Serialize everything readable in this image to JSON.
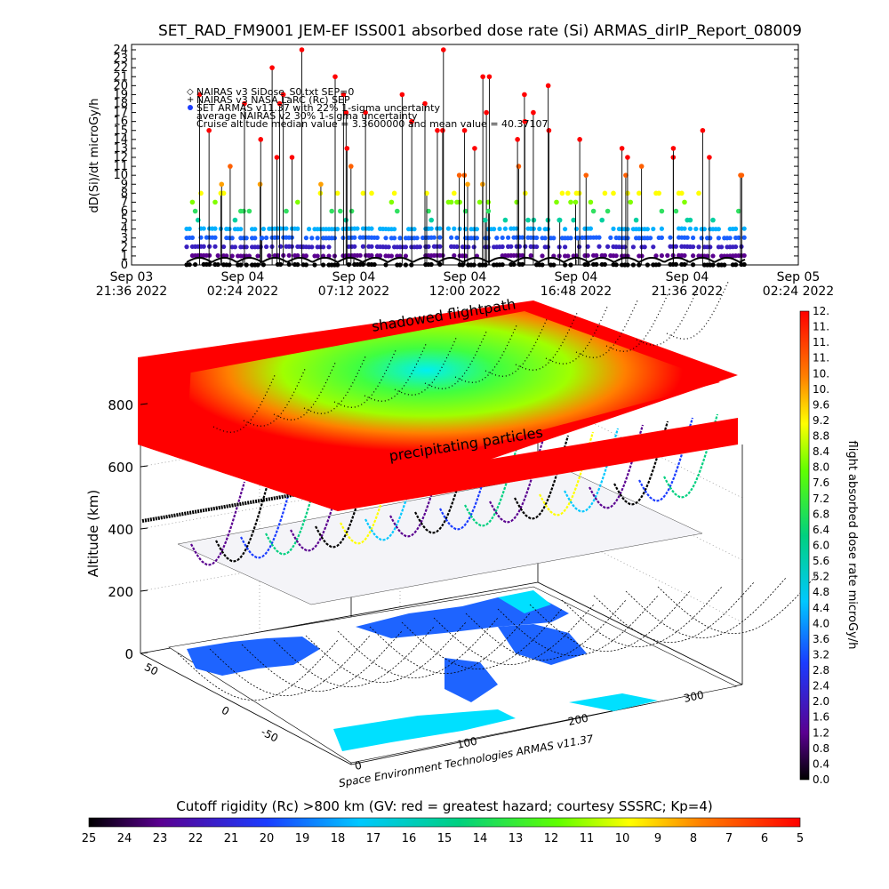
{
  "chart_data": [
    {
      "type": "scatter",
      "title": "SET_RAD_FM9001  JEM-EF ISS001 absorbed dose rate (Si) ARMAS_dirIP_Report_08009",
      "ylabel": "dD(Si)/dt microGy/h",
      "ylim": [
        0,
        24
      ],
      "yticks": [
        "0",
        "1",
        "2",
        "3",
        "4",
        "5",
        "6",
        "7",
        "8",
        "9",
        "10",
        "11",
        "12",
        "13",
        "14",
        "15",
        "16",
        "17",
        "18",
        "19",
        "20",
        "21",
        "22",
        "23",
        "24"
      ],
      "xticks": [
        {
          "line1": "Sep 03",
          "line2": "21:36 2022"
        },
        {
          "line1": "Sep 04",
          "line2": "02:24 2022"
        },
        {
          "line1": "Sep 04",
          "line2": "07:12 2022"
        },
        {
          "line1": "Sep 04",
          "line2": "12:00 2022"
        },
        {
          "line1": "Sep 04",
          "line2": "16:48 2022"
        },
        {
          "line1": "Sep 04",
          "line2": "21:36 2022"
        },
        {
          "line1": "Sep 05",
          "line2": "02:24 2022"
        }
      ],
      "legend": [
        "NAIRAS v3 SiDose_S0.txt SEP=0",
        "NAIRAS v3 NASA LaRC (Rc) SEP",
        "SET ARMAS v11.37 with 22% 1-sigma uncertainty",
        "average NAIRAS v2 30% 1-sigma uncertainty",
        "Cruise altitude median value = 3.3600000 and mean value = 40.37107"
      ],
      "legend_placement": "top-left",
      "series": [
        {
          "name": "SET ARMAS v11.37",
          "note_x_range_hours": [
            0,
            17.5
          ],
          "baseline_values": [
            0,
            1,
            2,
            3,
            4
          ],
          "spike_values": [
            21,
            23,
            24,
            20,
            22,
            15,
            17
          ]
        }
      ]
    },
    {
      "type": "heatmap",
      "zlabel": "Altitude (km)",
      "zticks": [
        "0",
        "200",
        "400",
        "600",
        "800"
      ],
      "ground_ticks_x": [
        "0",
        "100",
        "200",
        "300"
      ],
      "ground_ticks_y": [
        "-50",
        "0",
        "50"
      ],
      "annotations": [
        "shadowed flightpath",
        "precipitating particles"
      ],
      "credit": "Space Environment Technologies ARMAS v11.37",
      "colorbar_right": {
        "label": "flight absorbed dose rate microGy/h",
        "ticks": [
          "0.0",
          "0.4",
          "0.8",
          "1.2",
          "1.6",
          "2.0",
          "2.4",
          "2.8",
          "3.2",
          "3.6",
          "4.0",
          "4.4",
          "4.8",
          "5.2",
          "5.6",
          "6.0",
          "6.4",
          "6.8",
          "7.2",
          "7.6",
          "8.0",
          "8.4",
          "8.8",
          "9.2",
          "9.6",
          "10.",
          "10.",
          "11.",
          "11.",
          "11.",
          "12."
        ]
      },
      "colorbar_bottom": {
        "label": "Cutoff rigidity (Rc) >800 km (GV: red = greatest hazard; courtesy SSSRC; Kp=4)",
        "ticks": [
          "25",
          "24",
          "23",
          "22",
          "21",
          "20",
          "19",
          "18",
          "17",
          "16",
          "15",
          "14",
          "13",
          "12",
          "11",
          "10",
          "9",
          "8",
          "7",
          "6",
          "5"
        ]
      }
    }
  ]
}
